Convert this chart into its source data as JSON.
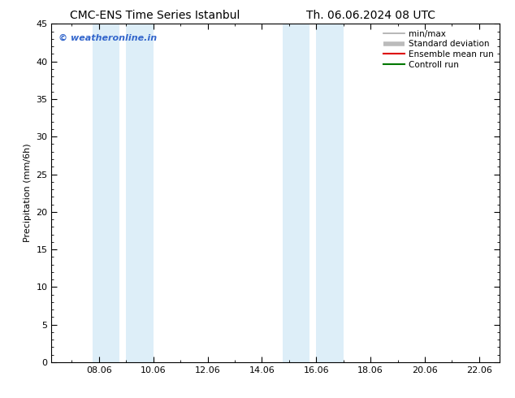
{
  "title_left": "CMC-ENS Time Series Istanbul",
  "title_right": "Th. 06.06.2024 08 UTC",
  "ylabel": "Precipitation (mm/6h)",
  "watermark": "© weatheronline.in",
  "ylim": [
    0,
    45
  ],
  "yticks": [
    0,
    5,
    10,
    15,
    20,
    25,
    30,
    35,
    40,
    45
  ],
  "xlim_days": [
    6.25,
    22.75
  ],
  "xtick_labels": [
    "08.06",
    "10.06",
    "12.06",
    "14.06",
    "16.06",
    "18.06",
    "20.06",
    "22.06"
  ],
  "xtick_positions": [
    8.0,
    10.0,
    12.0,
    14.0,
    16.0,
    18.0,
    20.0,
    22.0
  ],
  "shaded_bands": [
    {
      "xmin": 7.75,
      "xmax": 8.75,
      "color": "#ddeef8"
    },
    {
      "xmin": 9.0,
      "xmax": 10.0,
      "color": "#ddeef8"
    },
    {
      "xmin": 14.75,
      "xmax": 15.75,
      "color": "#ddeef8"
    },
    {
      "xmin": 16.0,
      "xmax": 17.0,
      "color": "#ddeef8"
    }
  ],
  "legend_entries": [
    {
      "label": "min/max",
      "color": "#aaaaaa",
      "lw": 1.2
    },
    {
      "label": "Standard deviation",
      "color": "#bbbbbb",
      "lw": 4.0
    },
    {
      "label": "Ensemble mean run",
      "color": "#dd0000",
      "lw": 1.5
    },
    {
      "label": "Controll run",
      "color": "#007700",
      "lw": 1.5
    }
  ],
  "bg_color": "#ffffff",
  "plot_bg_color": "#ffffff",
  "title_fontsize": 10,
  "axis_label_fontsize": 8,
  "tick_fontsize": 8,
  "watermark_color": "#3366cc",
  "border_color": "#000000",
  "legend_fontsize": 7.5
}
